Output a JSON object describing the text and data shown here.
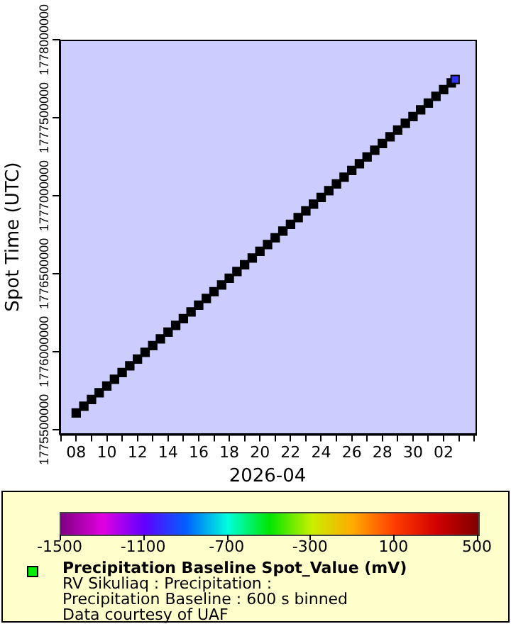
{
  "chart_data": {
    "type": "scatter",
    "xlabel": "2026-04",
    "ylabel": "Spot Time (UTC)",
    "x": [
      "2026-04-08T00:00",
      "2026-04-08T12:00",
      "2026-04-09T00:00",
      "2026-04-09T12:00",
      "2026-04-10T00:00",
      "2026-04-10T12:00",
      "2026-04-11T00:00",
      "2026-04-11T12:00",
      "2026-04-12T00:00",
      "2026-04-12T12:00",
      "2026-04-13T00:00",
      "2026-04-13T12:00",
      "2026-04-14T00:00",
      "2026-04-14T12:00",
      "2026-04-15T00:00",
      "2026-04-15T12:00",
      "2026-04-16T00:00",
      "2026-04-16T12:00",
      "2026-04-17T00:00",
      "2026-04-17T12:00",
      "2026-04-18T00:00",
      "2026-04-18T12:00",
      "2026-04-19T00:00",
      "2026-04-19T12:00",
      "2026-04-20T00:00",
      "2026-04-20T12:00",
      "2026-04-21T00:00",
      "2026-04-21T12:00",
      "2026-04-22T00:00",
      "2026-04-22T12:00",
      "2026-04-23T00:00",
      "2026-04-23T12:00",
      "2026-04-24T00:00",
      "2026-04-24T12:00",
      "2026-04-25T00:00",
      "2026-04-25T12:00",
      "2026-04-26T00:00",
      "2026-04-26T12:00",
      "2026-04-27T00:00",
      "2026-04-27T12:00",
      "2026-04-28T00:00",
      "2026-04-28T12:00",
      "2026-04-29T00:00",
      "2026-04-29T12:00",
      "2026-04-30T00:00",
      "2026-04-30T12:00",
      "2026-05-01T00:00",
      "2026-05-01T12:00",
      "2026-05-02T00:00",
      "2026-05-02T12:00",
      "2026-05-02T18:00"
    ],
    "values": [
      1775606400,
      1775649600,
      1775692800,
      1775736000,
      1775779200,
      1775822400,
      1775865600,
      1775908800,
      1775952000,
      1775995200,
      1776038400,
      1776081600,
      1776124800,
      1776168000,
      1776211200,
      1776254400,
      1776297600,
      1776340800,
      1776384000,
      1776427200,
      1776470400,
      1776513600,
      1776556800,
      1776600000,
      1776643200,
      1776686400,
      1776729600,
      1776772800,
      1776816000,
      1776859200,
      1776902400,
      1776945600,
      1776988800,
      1777032000,
      1777075200,
      1777118400,
      1777161600,
      1777204800,
      1777248000,
      1777291200,
      1777334400,
      1777377600,
      1777420800,
      1777464000,
      1777507200,
      1777550400,
      1777593600,
      1777636800,
      1777680000,
      1777723200,
      1777744800
    ],
    "cvalues": [
      null,
      null,
      null,
      null,
      null,
      null,
      null,
      null,
      null,
      null,
      null,
      null,
      null,
      null,
      null,
      null,
      null,
      null,
      null,
      null,
      null,
      null,
      null,
      null,
      null,
      null,
      null,
      null,
      null,
      null,
      null,
      null,
      null,
      null,
      null,
      null,
      null,
      null,
      null,
      null,
      null,
      null,
      null,
      null,
      null,
      null,
      null,
      null,
      null,
      null,
      -1000
    ],
    "marker": "square",
    "clabel": "Precipitation Baseline Spot_Value (mV)",
    "clim": [
      -1500,
      500
    ],
    "cticks": [
      -1500,
      -1100,
      -700,
      -300,
      100,
      500
    ],
    "xlim": [
      "2026-04-06T22:00",
      "2026-05-04T02:00"
    ],
    "xticks": [
      {
        "value": "2026-04-07",
        "label": null
      },
      {
        "value": "2026-04-08",
        "label": "08"
      },
      {
        "value": "2026-04-09",
        "label": null
      },
      {
        "value": "2026-04-10",
        "label": "10"
      },
      {
        "value": "2026-04-11",
        "label": null
      },
      {
        "value": "2026-04-12",
        "label": "12"
      },
      {
        "value": "2026-04-13",
        "label": null
      },
      {
        "value": "2026-04-14",
        "label": "14"
      },
      {
        "value": "2026-04-15",
        "label": null
      },
      {
        "value": "2026-04-16",
        "label": "16"
      },
      {
        "value": "2026-04-17",
        "label": null
      },
      {
        "value": "2026-04-18",
        "label": "18"
      },
      {
        "value": "2026-04-19",
        "label": null
      },
      {
        "value": "2026-04-20",
        "label": "20"
      },
      {
        "value": "2026-04-21",
        "label": null
      },
      {
        "value": "2026-04-22",
        "label": "22"
      },
      {
        "value": "2026-04-23",
        "label": null
      },
      {
        "value": "2026-04-24",
        "label": "24"
      },
      {
        "value": "2026-04-25",
        "label": null
      },
      {
        "value": "2026-04-26",
        "label": "26"
      },
      {
        "value": "2026-04-27",
        "label": null
      },
      {
        "value": "2026-04-28",
        "label": "28"
      },
      {
        "value": "2026-04-29",
        "label": null
      },
      {
        "value": "2026-04-30",
        "label": "30"
      },
      {
        "value": "2026-05-01",
        "label": null
      },
      {
        "value": "2026-05-02",
        "label": "02"
      },
      {
        "value": "2026-05-03",
        "label": null
      },
      {
        "value": "2026-05-04",
        "label": null
      }
    ],
    "ylim": [
      1775470000,
      1778000000
    ],
    "yticks": [
      1775500000,
      1776000000,
      1776500000,
      1777000000,
      1777500000,
      1778000000
    ],
    "annotations": [
      "RV Sikuliaq : Precipitation :",
      "Precipitation Baseline : 600 s binned",
      "Data courtesy of UAF"
    ]
  }
}
